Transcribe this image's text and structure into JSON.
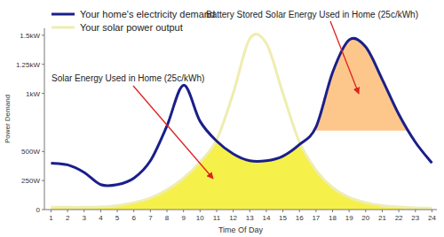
{
  "chart_data": {
    "type": "line",
    "x_label": "Time Of Day",
    "y_label": "Power Demand",
    "x": [
      1,
      2,
      3,
      4,
      5,
      6,
      7,
      8,
      9,
      10,
      11,
      12,
      13,
      14,
      15,
      16,
      17,
      18,
      19,
      20,
      21,
      22,
      23,
      24
    ],
    "series": [
      {
        "name": "Your home's electricity demand",
        "color": "#1a1f8a",
        "values": [
          400,
          385,
          320,
          215,
          215,
          270,
          420,
          720,
          1070,
          760,
          590,
          480,
          420,
          420,
          460,
          560,
          710,
          1180,
          1460,
          1400,
          1120,
          820,
          580,
          400
        ]
      },
      {
        "name": "Your solar power output",
        "color": "#efedb0",
        "values": [
          20,
          20,
          20,
          22,
          35,
          60,
          100,
          170,
          270,
          410,
          600,
          1000,
          1470,
          1430,
          1000,
          580,
          340,
          190,
          105,
          60,
          35,
          22,
          15,
          12
        ]
      }
    ],
    "xlim": [
      0.6,
      24.3
    ],
    "ylim": [
      0,
      1560
    ],
    "xticks": [
      1,
      2,
      3,
      4,
      5,
      6,
      7,
      8,
      9,
      10,
      11,
      12,
      13,
      14,
      15,
      16,
      17,
      18,
      19,
      20,
      21,
      22,
      23,
      24
    ],
    "yticks": [
      0,
      {
        "value": 250,
        "label": "250W"
      },
      {
        "value": 500,
        "label": "500W"
      },
      {
        "value": 1000,
        "label": "1kW"
      },
      {
        "value": 1250,
        "label": "1.25kW"
      },
      {
        "value": 1500,
        "label": "1.5kW"
      }
    ],
    "grid": false,
    "legend": "top-left",
    "annotations": [
      {
        "text": "Solar Energy Used in Home (25c/kWh)",
        "color": "#f6f04a"
      },
      {
        "text": "Battery Stored Solar Energy Used in Home (25c/kWh)",
        "color": "#fdc78c",
        "x_from": 17,
        "x_to": 23,
        "y_from": 680
      }
    ]
  }
}
